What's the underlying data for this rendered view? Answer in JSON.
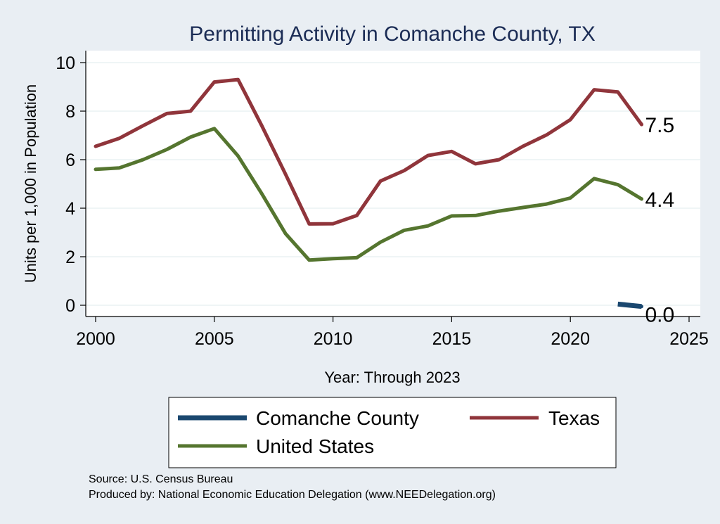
{
  "chart_data": {
    "type": "line",
    "title": "Permitting Activity in Comanche County, TX",
    "xlabel": "Year: Through 2023",
    "ylabel": "Units per 1,000 in Population",
    "xlim": [
      2000,
      2025
    ],
    "ylim": [
      0,
      10
    ],
    "x_ticks": [
      "2000",
      "2005",
      "2010",
      "2015",
      "2020",
      "2025"
    ],
    "y_ticks": [
      "0",
      "2",
      "4",
      "6",
      "8",
      "10"
    ],
    "grid": true,
    "legend_position": "bottom",
    "series": [
      {
        "name": "Comanche County",
        "color": "#1a476f",
        "x": [
          2022,
          2023
        ],
        "values": [
          0.05,
          -0.05
        ],
        "end_label": "0.0"
      },
      {
        "name": "Texas",
        "color": "#90353b",
        "x": [
          2000,
          2001,
          2002,
          2003,
          2004,
          2005,
          2006,
          2007,
          2008,
          2009,
          2010,
          2011,
          2012,
          2013,
          2014,
          2015,
          2016,
          2017,
          2018,
          2019,
          2020,
          2021,
          2022,
          2023
        ],
        "values": [
          6.55,
          6.88,
          7.4,
          7.9,
          8.0,
          9.2,
          9.3,
          7.4,
          5.4,
          3.35,
          3.36,
          3.7,
          5.12,
          5.55,
          6.17,
          6.34,
          5.83,
          6.0,
          6.55,
          7.02,
          7.65,
          8.88,
          8.79,
          7.45
        ],
        "end_label": "7.5"
      },
      {
        "name": "United States",
        "color": "#55752f",
        "x": [
          2000,
          2001,
          2002,
          2003,
          2004,
          2005,
          2006,
          2007,
          2008,
          2009,
          2010,
          2011,
          2012,
          2013,
          2014,
          2015,
          2016,
          2017,
          2018,
          2019,
          2020,
          2021,
          2022,
          2023
        ],
        "values": [
          5.6,
          5.66,
          6.0,
          6.42,
          6.93,
          7.28,
          6.15,
          4.6,
          2.95,
          1.86,
          1.92,
          1.96,
          2.6,
          3.09,
          3.27,
          3.68,
          3.7,
          3.88,
          4.03,
          4.17,
          4.42,
          5.22,
          4.97,
          4.38
        ],
        "end_label": "4.4"
      }
    ],
    "source_lines": [
      "Source: U.S. Census Bureau",
      "Produced by: National Economic Education Delegation (www.NEEDelegation.org)"
    ]
  }
}
